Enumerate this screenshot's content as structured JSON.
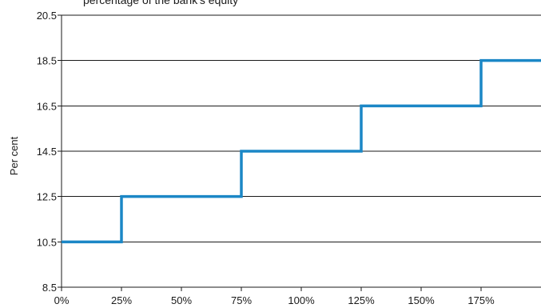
{
  "chart_data": {
    "type": "line",
    "title": "percentage of the bank's equity",
    "xlabel": "",
    "ylabel": "Per cent",
    "xlim": [
      0,
      200
    ],
    "ylim": [
      8.5,
      20.5
    ],
    "x_ticks": [
      0,
      25,
      50,
      75,
      100,
      125,
      150,
      175
    ],
    "x_tick_labels": [
      "0%",
      "25%",
      "50%",
      "75%",
      "100%",
      "125%",
      "150%",
      "175%"
    ],
    "y_ticks": [
      8.5,
      10.5,
      12.5,
      14.5,
      16.5,
      18.5,
      20.5
    ],
    "y_tick_labels": [
      "8.5",
      "10.5",
      "12.5",
      "14.5",
      "16.5",
      "18.5",
      "20.5"
    ],
    "grid": "horizontal",
    "legend": "none",
    "series": [
      {
        "step": "post",
        "color": "#1b87c6",
        "x": [
          0,
          25,
          75,
          125,
          175,
          200
        ],
        "y": [
          10.5,
          12.5,
          14.5,
          16.5,
          18.5,
          18.5
        ]
      }
    ]
  }
}
